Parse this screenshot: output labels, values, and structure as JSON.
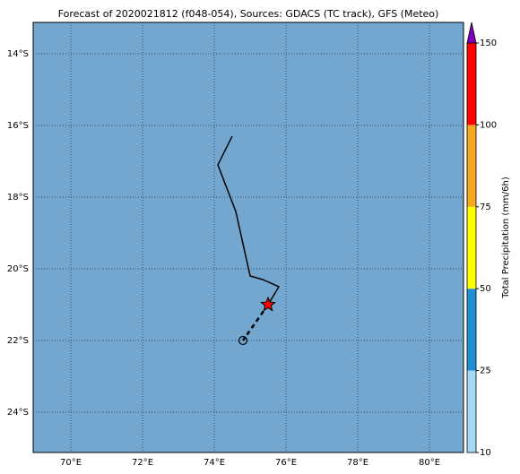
{
  "map": {
    "title": "Forecast of 2020021812 (f048-054), Sources: GDACS (TC track), GFS (Meteo)",
    "lonlim": [
      68.95,
      80.95
    ],
    "latlim": [
      -25.125,
      -13.125
    ],
    "lonticks": [
      {
        "value": 70,
        "label": "70°E"
      },
      {
        "value": 72,
        "label": "72°E"
      },
      {
        "value": 74,
        "label": "74°E"
      },
      {
        "value": 76,
        "label": "76°E"
      },
      {
        "value": 78,
        "label": "78°E"
      },
      {
        "value": 80,
        "label": "80°E"
      }
    ],
    "latticks": [
      {
        "value": -14,
        "label": "14°S"
      },
      {
        "value": -16,
        "label": "16°S"
      },
      {
        "value": -18,
        "label": "18°S"
      },
      {
        "value": -20,
        "label": "20°S"
      },
      {
        "value": -22,
        "label": "22°S"
      },
      {
        "value": -24,
        "label": "24°S"
      }
    ],
    "ocean_color": "#73a7cf",
    "track": {
      "lon": [
        74.5,
        74.1,
        74.6,
        75.0,
        75.35,
        75.8,
        75.5
      ],
      "lat": [
        -16.3,
        -17.1,
        -18.4,
        -20.2,
        -20.3,
        -20.5,
        -21.0
      ]
    },
    "forecast": {
      "lon": 74.8,
      "lat": -22.0
    },
    "current_color": "#ff0000",
    "colorbar": {
      "label": "Total Precipitation (mm/6h)",
      "ticks": [
        10,
        25,
        50,
        75,
        100,
        150
      ],
      "colors": [
        "#a6d8f8",
        "#1e8fd6",
        "#ffff00",
        "#f7a823",
        "#ff0000"
      ],
      "extend_color": "#8000c0"
    }
  }
}
